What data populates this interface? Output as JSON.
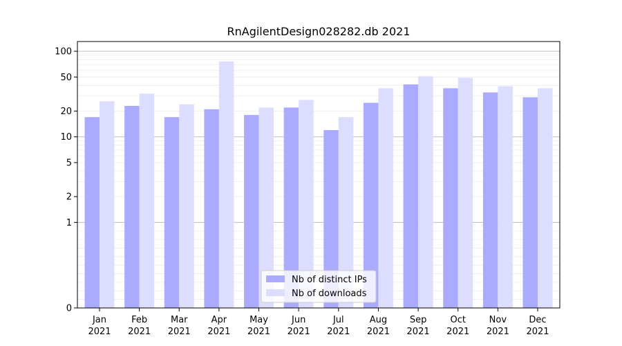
{
  "chart_data": {
    "type": "bar",
    "title": "RnAgilentDesign028282.db 2021",
    "xlabel": "",
    "ylabel": "",
    "y_scale": "symlog",
    "ylim": [
      0,
      130
    ],
    "y_ticks": [
      0,
      1,
      2,
      5,
      10,
      20,
      50,
      100
    ],
    "y_tick_labels": [
      "0",
      "1",
      "2",
      "5",
      "10",
      "20",
      "50",
      "100"
    ],
    "categories": [
      {
        "month": "Jan",
        "year": "2021"
      },
      {
        "month": "Feb",
        "year": "2021"
      },
      {
        "month": "Mar",
        "year": "2021"
      },
      {
        "month": "Apr",
        "year": "2021"
      },
      {
        "month": "May",
        "year": "2021"
      },
      {
        "month": "Jun",
        "year": "2021"
      },
      {
        "month": "Jul",
        "year": "2021"
      },
      {
        "month": "Aug",
        "year": "2021"
      },
      {
        "month": "Sep",
        "year": "2021"
      },
      {
        "month": "Oct",
        "year": "2021"
      },
      {
        "month": "Nov",
        "year": "2021"
      },
      {
        "month": "Dec",
        "year": "2021"
      }
    ],
    "series": [
      {
        "name": "Nb of distinct IPs",
        "color": "#aaaaff",
        "values": [
          17,
          23,
          17,
          21,
          18,
          22,
          12,
          25,
          41,
          37,
          33,
          29
        ]
      },
      {
        "name": "Nb of downloads",
        "color": "#ddddff",
        "values": [
          26,
          32,
          24,
          76,
          22,
          27,
          17,
          37,
          51,
          49,
          39,
          37
        ]
      }
    ],
    "grid": true,
    "legend_position": "bottom-center"
  }
}
